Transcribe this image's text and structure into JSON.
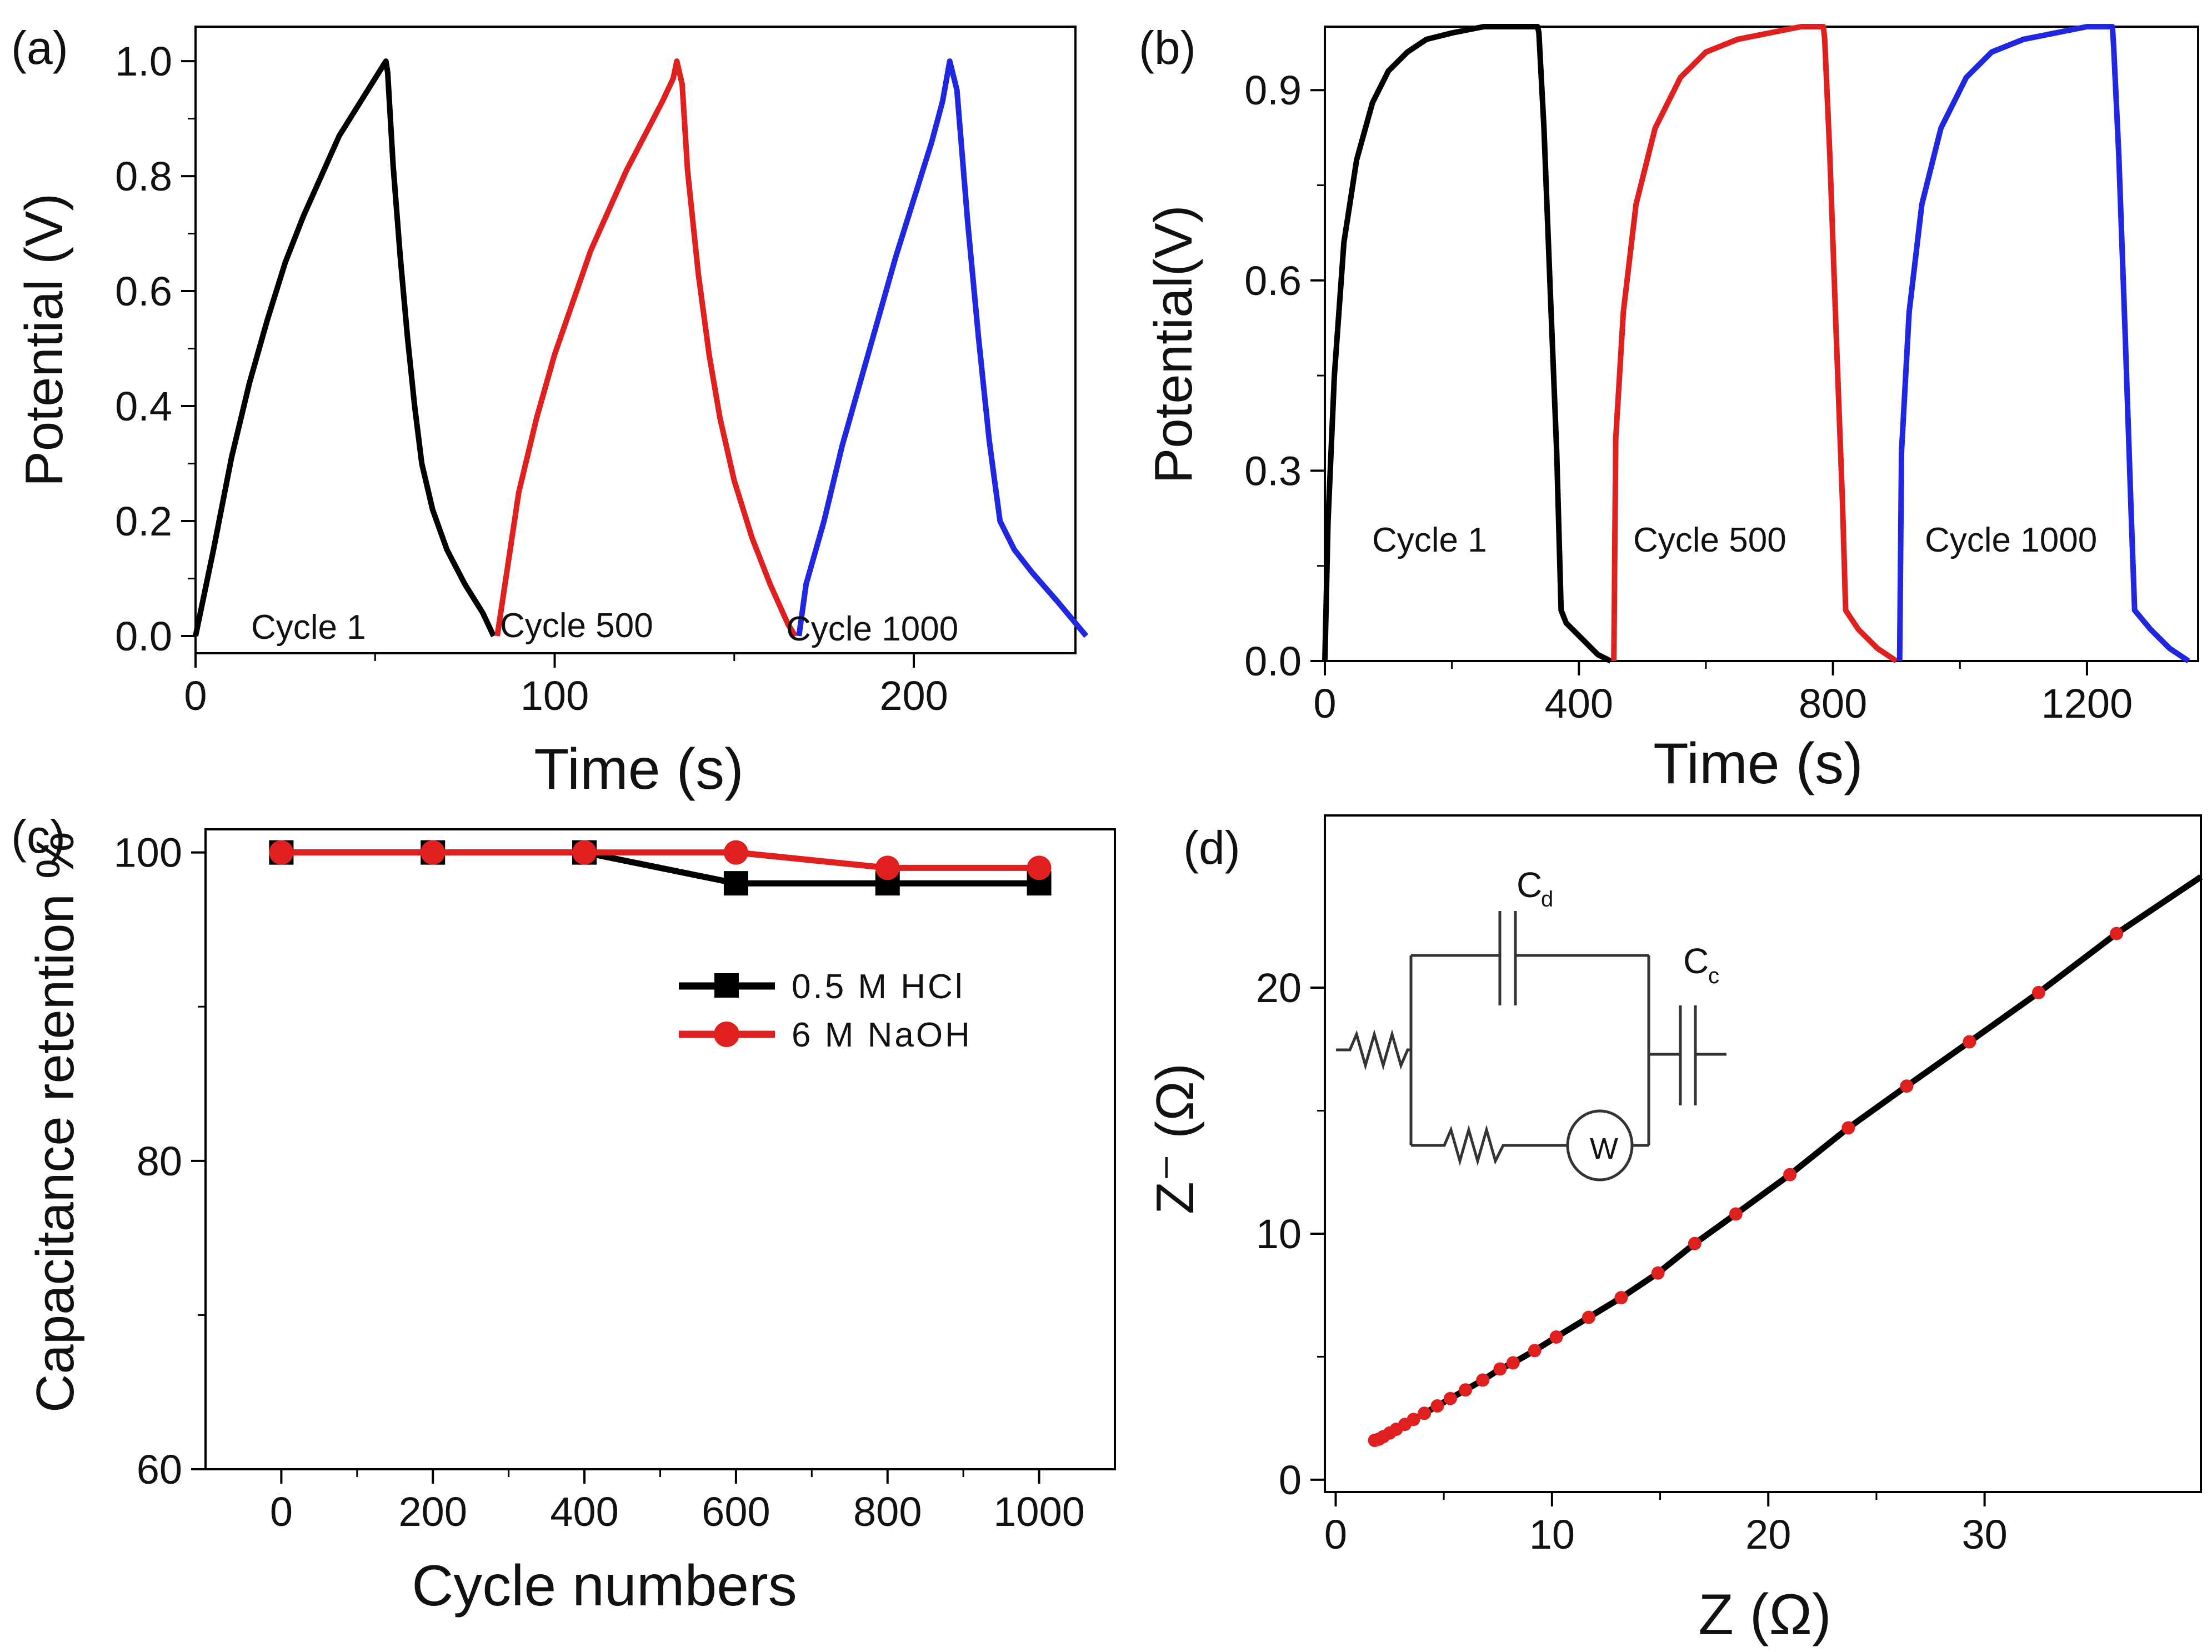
{
  "chart_data": [
    {
      "panel": "(a)",
      "type": "line",
      "xlabel": "Time (s)",
      "ylabel": "Potential (V)",
      "xlim": [
        0,
        245
      ],
      "ylim": [
        -0.03,
        1.06
      ],
      "xticks": [
        0,
        100,
        200
      ],
      "xtick_labels": [
        "0",
        "100",
        "200"
      ],
      "yticks": [
        0.0,
        0.2,
        0.4,
        0.6,
        0.8,
        1.0
      ],
      "ytick_labels": [
        "0.0",
        "0.2",
        "0.4",
        "0.6",
        "0.8",
        "1.0"
      ],
      "series": [
        {
          "name": "Cycle 1",
          "color": "#000000",
          "x": [
            0,
            5,
            10,
            15,
            20,
            25,
            30,
            35,
            40,
            45,
            50,
            53,
            53.5,
            55,
            57,
            59,
            61,
            63,
            66,
            70,
            75,
            80,
            83
          ],
          "y": [
            0,
            0.15,
            0.31,
            0.44,
            0.55,
            0.65,
            0.73,
            0.8,
            0.87,
            0.92,
            0.97,
            1.0,
            0.98,
            0.82,
            0.66,
            0.52,
            0.4,
            0.3,
            0.22,
            0.15,
            0.09,
            0.04,
            0.0
          ]
        },
        {
          "name": "Cycle 500",
          "color": "#e01f1f",
          "x": [
            84,
            90,
            95,
            100,
            105,
            110,
            115,
            120,
            125,
            130,
            133,
            134,
            135.5,
            137,
            140,
            143,
            146,
            150,
            155,
            160,
            165,
            167
          ],
          "y": [
            0,
            0.25,
            0.38,
            0.49,
            0.58,
            0.67,
            0.74,
            0.81,
            0.87,
            0.93,
            0.97,
            1.0,
            0.96,
            0.81,
            0.63,
            0.49,
            0.38,
            0.27,
            0.17,
            0.09,
            0.02,
            0.0
          ]
        },
        {
          "name": "Cycle 1000",
          "color": "#1f27e0",
          "x": [
            168,
            170,
            175,
            180,
            185,
            190,
            195,
            200,
            205,
            208,
            210,
            212,
            215,
            218,
            221,
            224,
            228,
            233,
            240,
            248
          ],
          "y": [
            0,
            0.09,
            0.2,
            0.33,
            0.44,
            0.55,
            0.66,
            0.76,
            0.86,
            0.93,
            1.0,
            0.95,
            0.72,
            0.52,
            0.34,
            0.2,
            0.15,
            0.11,
            0.06,
            0.0
          ]
        }
      ],
      "annotations": [
        "Cycle 1",
        "Cycle 500",
        "Cycle 1000"
      ]
    },
    {
      "panel": "(b)",
      "type": "line",
      "xlabel": "Time (s)",
      "ylabel": "Potential(V)",
      "xlim": [
        0,
        1375
      ],
      "ylim": [
        0,
        1.0
      ],
      "xticks": [
        0,
        400,
        800,
        1200
      ],
      "xtick_labels": [
        "0",
        "400",
        "800",
        "1200"
      ],
      "yticks": [
        0.0,
        0.3,
        0.6,
        0.9
      ],
      "ytick_labels": [
        "0.0",
        "0.3",
        "0.6",
        "0.9"
      ],
      "series": [
        {
          "name": "Cycle 1",
          "color": "#000000",
          "x": [
            0,
            5,
            15,
            30,
            50,
            75,
            100,
            130,
            160,
            200,
            250,
            300,
            335,
            337,
            345,
            355,
            365,
            372,
            380,
            400,
            430,
            450
          ],
          "y": [
            0,
            0.22,
            0.45,
            0.66,
            0.79,
            0.88,
            0.93,
            0.96,
            0.98,
            0.99,
            1.0,
            1.0,
            1.0,
            0.99,
            0.84,
            0.58,
            0.33,
            0.08,
            0.06,
            0.04,
            0.01,
            0.0
          ]
        },
        {
          "name": "Cycle 500",
          "color": "#e01f1f",
          "x": [
            455,
            458,
            470,
            490,
            520,
            560,
            600,
            650,
            700,
            750,
            785,
            787,
            795,
            805,
            815,
            820,
            840,
            870,
            900
          ],
          "y": [
            0,
            0.35,
            0.55,
            0.72,
            0.84,
            0.92,
            0.96,
            0.98,
            0.99,
            1.0,
            1.0,
            0.98,
            0.8,
            0.52,
            0.25,
            0.08,
            0.05,
            0.02,
            0.0
          ]
        },
        {
          "name": "Cycle 1000",
          "color": "#1f27e0",
          "x": [
            905,
            908,
            920,
            940,
            970,
            1010,
            1050,
            1100,
            1150,
            1200,
            1240,
            1242,
            1250,
            1260,
            1270,
            1275,
            1300,
            1330,
            1360
          ],
          "y": [
            0,
            0.33,
            0.55,
            0.72,
            0.84,
            0.92,
            0.96,
            0.98,
            0.99,
            1.0,
            1.0,
            0.97,
            0.8,
            0.52,
            0.22,
            0.08,
            0.05,
            0.02,
            0.0
          ]
        }
      ],
      "annotations": [
        "Cycle 1",
        "Cycle 500",
        "Cycle 1000"
      ]
    },
    {
      "panel": "(c)",
      "type": "line",
      "xlabel": "Cycle numbers",
      "ylabel": "Capacitance retention %",
      "xlim": [
        -100,
        1100
      ],
      "ylim": [
        60,
        101.5
      ],
      "xticks": [
        0,
        200,
        400,
        600,
        800,
        1000
      ],
      "xtick_labels": [
        "0",
        "200",
        "400",
        "600",
        "800",
        "1000"
      ],
      "yticks": [
        60,
        80,
        100
      ],
      "ytick_labels": [
        "60",
        "80",
        "100"
      ],
      "x": [
        0,
        200,
        400,
        600,
        800,
        1000
      ],
      "series": [
        {
          "name": "0.5 M HCl",
          "color": "#000000",
          "marker": "square",
          "values": [
            100,
            100,
            100,
            98,
            98,
            98
          ]
        },
        {
          "name": "6 M NaOH",
          "color": "#e01f1f",
          "marker": "circle",
          "values": [
            100,
            100,
            100,
            100,
            99,
            99
          ]
        }
      ],
      "legend": [
        "0.5 M HCl",
        "6 M NaOH"
      ],
      "legend_position": "center-right"
    },
    {
      "panel": "(d)",
      "type": "scatter",
      "xlabel": "Z (Ω)",
      "ylabel": "Z⁻ (Ω)",
      "xlim": [
        -0.5,
        40
      ],
      "ylim": [
        -0.5,
        27
      ],
      "xticks": [
        0,
        10,
        20,
        30
      ],
      "xtick_labels": [
        "0",
        "10",
        "20",
        "30"
      ],
      "yticks": [
        0,
        10,
        20
      ],
      "ytick_labels": [
        "0",
        "10",
        "20"
      ],
      "line_color": "#000000",
      "marker_color": "#e01f1f",
      "points": [
        [
          1.8,
          1.6
        ],
        [
          2.0,
          1.65
        ],
        [
          2.2,
          1.75
        ],
        [
          2.5,
          1.9
        ],
        [
          2.8,
          2.05
        ],
        [
          3.2,
          2.25
        ],
        [
          3.6,
          2.45
        ],
        [
          4.1,
          2.7
        ],
        [
          4.7,
          3.0
        ],
        [
          5.3,
          3.3
        ],
        [
          6.0,
          3.65
        ],
        [
          6.8,
          4.05
        ],
        [
          7.6,
          4.5
        ],
        [
          8.2,
          4.75
        ],
        [
          9.2,
          5.25
        ],
        [
          10.2,
          5.8
        ],
        [
          11.7,
          6.6
        ],
        [
          13.2,
          7.4
        ],
        [
          14.9,
          8.4
        ],
        [
          16.6,
          9.6
        ],
        [
          18.5,
          10.8
        ],
        [
          21.0,
          12.4
        ],
        [
          23.7,
          14.3
        ],
        [
          26.4,
          16.0
        ],
        [
          29.3,
          17.8
        ],
        [
          32.5,
          19.8
        ],
        [
          36.1,
          22.2
        ]
      ],
      "line_end": [
        40,
        24.5
      ],
      "inset_circuit": {
        "labels": [
          "C",
          "d",
          "C",
          "c",
          "W"
        ]
      }
    }
  ],
  "panels": {
    "a": {
      "label": "(a)",
      "xlabel": "Time (s)",
      "ylabel": "Potential (V)",
      "annot_1": "Cycle 1",
      "annot_2": "Cycle 500",
      "annot_3": "Cycle 1000"
    },
    "b": {
      "label": "(b)",
      "xlabel": "Time (s)",
      "ylabel": "Potential(V)",
      "annot_1": "Cycle 1",
      "annot_2": "Cycle 500",
      "annot_3": "Cycle 1000"
    },
    "c": {
      "label": "(c)",
      "xlabel": "Cycle numbers",
      "ylabel": "Capacitance retention %",
      "legend_1": "0.5 M HCl",
      "legend_2": "6 M NaOH"
    },
    "d": {
      "label": "(d)",
      "xlabel": "Z (Ω)",
      "ylabel": "Z⁻ (Ω)",
      "cd_main": "C",
      "cd_sub": "d",
      "cc_main": "C",
      "cc_sub": "c",
      "warburg": "W"
    }
  }
}
